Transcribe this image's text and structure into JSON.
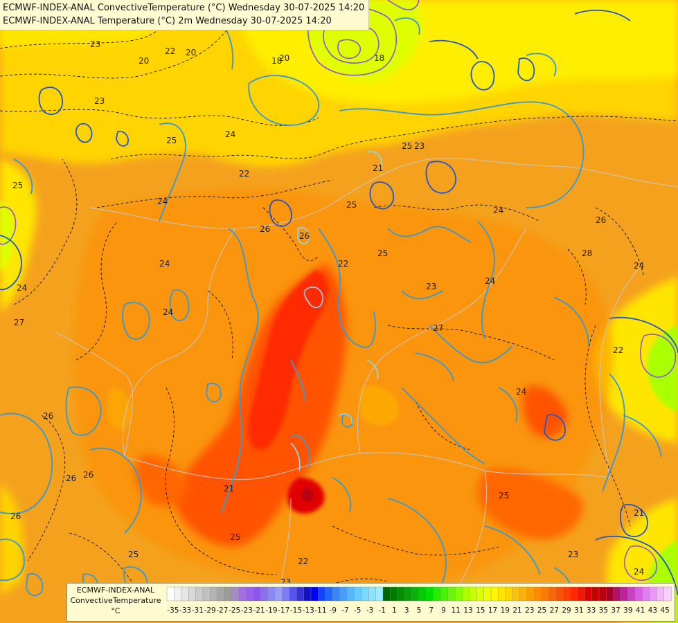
{
  "titles": [
    "ECMWF-INDEX-ANAL ConvectiveTemperature (°C) Wednesday 30-07-2025 14:20",
    "ECMWF-INDEX-ANAL Temperature (°C) 2m Wednesday 30-07-2025 14:20"
  ],
  "legend": {
    "model": "ECMWF-INDEX-ANAL",
    "parameter": "ConvectiveTemperature",
    "unit": "°C",
    "ticks": [
      "-35",
      "-33",
      "-31",
      "-29",
      "-27",
      "-25",
      "-23",
      "-21",
      "-19",
      "-17",
      "-15",
      "-13",
      "-11",
      "-9",
      "-7",
      "-5",
      "-3",
      "-1",
      "1",
      "3",
      "5",
      "7",
      "9",
      "11",
      "13",
      "15",
      "17",
      "19",
      "21",
      "23",
      "25",
      "27",
      "29",
      "31",
      "33",
      "35",
      "37",
      "39",
      "41",
      "43",
      "45"
    ],
    "colors": [
      "#ffffff",
      "#f2f2f2",
      "#e6e6e6",
      "#d9d9d9",
      "#cccccc",
      "#c0c0c0",
      "#b3b3b3",
      "#a6a6a6",
      "#9c9c9c",
      "#a689c9",
      "#a270e0",
      "#9a60ec",
      "#8e55f0",
      "#8870f2",
      "#8a8af4",
      "#9a9cf6",
      "#7c7cf0",
      "#5555ee",
      "#3333dd",
      "#1111cc",
      "#0000ee",
      "#1144ff",
      "#2266ff",
      "#3388ff",
      "#44a0ff",
      "#55b8ff",
      "#66ccff",
      "#7adaff",
      "#88e4ff",
      "#99eeff",
      "#006600",
      "#007a00",
      "#008f00",
      "#00a300",
      "#00b800",
      "#00cc00",
      "#00e000",
      "#22ee00",
      "#44f500",
      "#66fa00",
      "#88ff00",
      "#aaff00",
      "#c8ff00",
      "#ddff00",
      "#eeff00",
      "#fff700",
      "#ffe600",
      "#ffd400",
      "#ffc200",
      "#ffb000",
      "#ff9e00",
      "#ff8c00",
      "#ff7a00",
      "#ff6600",
      "#ff5200",
      "#ff3e00",
      "#ff2a00",
      "#f01800",
      "#e00000",
      "#cc0000",
      "#b80010",
      "#a30025",
      "#b0106a",
      "#c020a0",
      "#cc40c8",
      "#d860e0",
      "#e080f0",
      "#ea99f6",
      "#f2b8fa",
      "#f8d0fc"
    ]
  },
  "contour_labels": [
    "23",
    "20",
    "22",
    "20",
    "18",
    "20",
    "18",
    "23",
    "25",
    "24",
    "21",
    "22",
    "24",
    "24",
    "25",
    "22",
    "23",
    "24",
    "26",
    "21",
    "25",
    "26",
    "26",
    "26",
    "25",
    "24",
    "24",
    "26",
    "25",
    "27",
    "28",
    "27",
    "26",
    "25",
    "23",
    "22",
    "24",
    "25",
    "22",
    "23",
    "24",
    "26",
    "25",
    "23",
    "24",
    "21",
    "24"
  ]
}
